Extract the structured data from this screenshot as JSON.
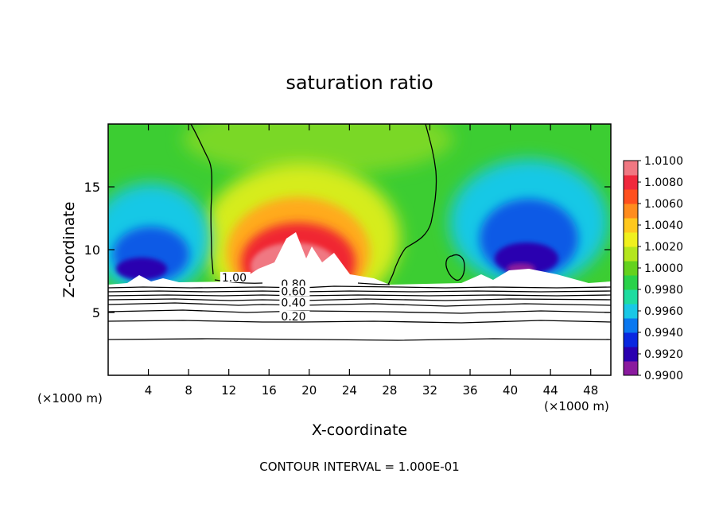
{
  "chart_data": {
    "type": "heatmap",
    "title": "saturation ratio",
    "xlabel": "X-coordinate",
    "ylabel": "Z-coordinate",
    "x_unit": "(×1000 m)",
    "y_unit": "(×1000 m)",
    "xlim": [
      0,
      50
    ],
    "ylim": [
      0,
      20
    ],
    "x_ticks": [
      {
        "value": 4,
        "label": "4"
      },
      {
        "value": 8,
        "label": "8"
      },
      {
        "value": 12,
        "label": "12"
      },
      {
        "value": 16,
        "label": "16"
      },
      {
        "value": 20,
        "label": "20"
      },
      {
        "value": 24,
        "label": "24"
      },
      {
        "value": 28,
        "label": "28"
      },
      {
        "value": 32,
        "label": "32"
      },
      {
        "value": 36,
        "label": "36"
      },
      {
        "value": 40,
        "label": "40"
      },
      {
        "value": 44,
        "label": "44"
      },
      {
        "value": 48,
        "label": "48"
      }
    ],
    "y_ticks": [
      {
        "value": 5,
        "label": "5"
      },
      {
        "value": 10,
        "label": "10"
      },
      {
        "value": 15,
        "label": "15"
      }
    ],
    "colorbar": {
      "min": 0.99,
      "max": 1.01,
      "labels": [
        "1.0100",
        "1.0080",
        "1.0060",
        "1.0040",
        "1.0020",
        "1.0000",
        "0.9980",
        "0.9960",
        "0.9940",
        "0.9920",
        "0.9900"
      ],
      "colors": [
        "#8a1a9e",
        "#2a00b0",
        "#0a28e0",
        "#0a78f0",
        "#19c8e6",
        "#1edca0",
        "#2ad24a",
        "#64d21e",
        "#b4e61e",
        "#f0f01e",
        "#ffc81e",
        "#ff8c1e",
        "#ff501e",
        "#f0283c",
        "#f07882"
      ]
    },
    "contour_labels": [
      {
        "text": "1.00",
        "x": 11.3,
        "z": 7.6
      },
      {
        "text": "0.80",
        "x": 17.2,
        "z": 7.1
      },
      {
        "text": "0.60",
        "x": 17.2,
        "z": 6.5
      },
      {
        "text": "0.40",
        "x": 17.2,
        "z": 5.6
      },
      {
        "text": "0.20",
        "x": 17.2,
        "z": 4.5
      }
    ],
    "annotation": "CONTOUR INTERVAL = 1.000E-01"
  }
}
